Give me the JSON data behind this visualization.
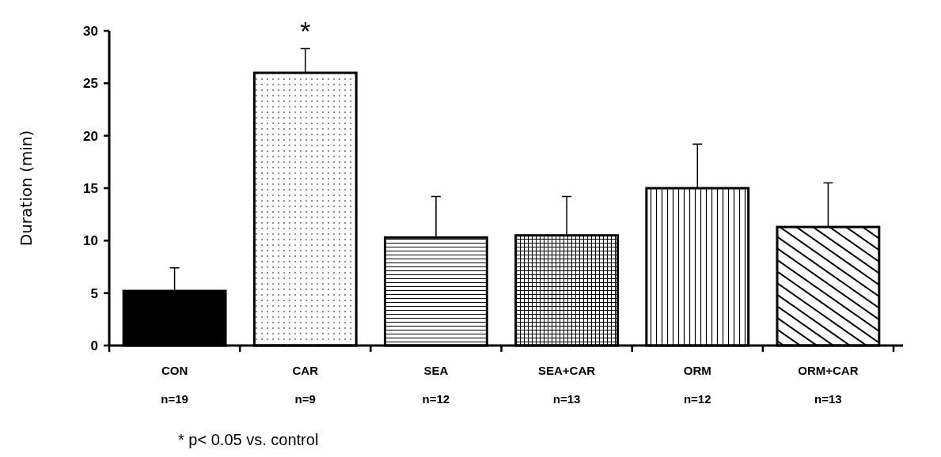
{
  "chart_data": {
    "type": "bar",
    "ylabel": "Duration (min)",
    "categories": [
      "CON\nn=19",
      "CAR\nn=9",
      "SEA\nn=12",
      "SEA+CAR\nn=13",
      "ORM\nn=12",
      "ORM+CAR\nn=13"
    ],
    "values": [
      5.2,
      26.0,
      10.3,
      10.5,
      15.0,
      11.3
    ],
    "errors": [
      [
        5.2,
        7.4
      ],
      [
        26.0,
        28.3
      ],
      [
        10.3,
        14.2
      ],
      [
        10.5,
        14.2
      ],
      [
        15.0,
        19.2
      ],
      [
        11.3,
        15.5
      ]
    ],
    "colors": [
      "#000000",
      "#000000",
      "#000000",
      "#000000",
      "#000000",
      "#000000"
    ],
    "ylim": [
      0,
      30
    ],
    "yticks": [
      0,
      5,
      10,
      15,
      20,
      25,
      30
    ],
    "grid": false,
    "annotations": [
      "*",
      "* p< 0.05 vs. control"
    ]
  }
}
